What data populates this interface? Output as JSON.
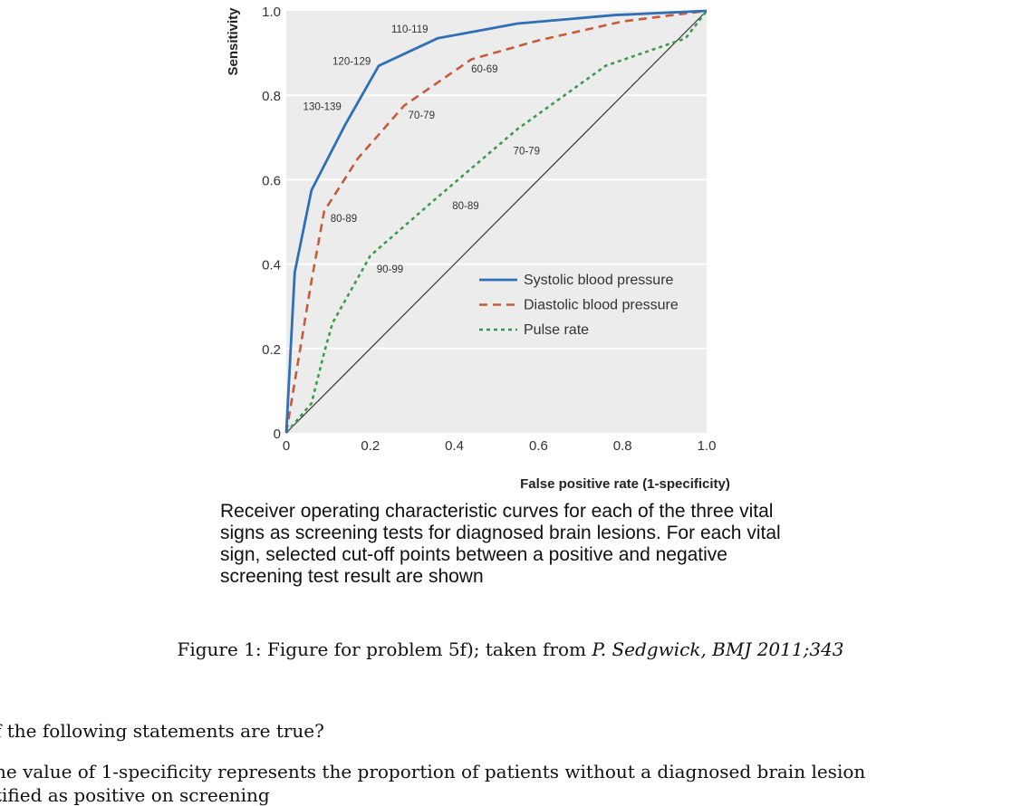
{
  "chart_data": {
    "type": "line",
    "xlabel": "False positive rate (1-specificity)",
    "ylabel": "Sensitivity",
    "xlim": [
      0,
      1
    ],
    "ylim": [
      0,
      1
    ],
    "x_ticks": [
      "0",
      "0.2",
      "0.4",
      "0.6",
      "0.8",
      "1.0"
    ],
    "y_ticks": [
      "0",
      "0.2",
      "0.4",
      "0.6",
      "0.8",
      "1.0"
    ],
    "grid": "horizontal",
    "legend_position": "lower-right",
    "series": [
      {
        "name": "Systolic blood pressure",
        "color": "#2f6fb5",
        "style": "solid",
        "points": [
          [
            0,
            0
          ],
          [
            0.02,
            0.38
          ],
          [
            0.06,
            0.575
          ],
          [
            0.14,
            0.73
          ],
          [
            0.22,
            0.87
          ],
          [
            0.36,
            0.935
          ],
          [
            0.55,
            0.97
          ],
          [
            0.78,
            0.99
          ],
          [
            1,
            1
          ]
        ]
      },
      {
        "name": "Diastolic blood pressure",
        "color": "#c85a3c",
        "style": "dashed",
        "points": [
          [
            0,
            0
          ],
          [
            0.03,
            0.18
          ],
          [
            0.06,
            0.36
          ],
          [
            0.09,
            0.525
          ],
          [
            0.17,
            0.65
          ],
          [
            0.28,
            0.775
          ],
          [
            0.44,
            0.885
          ],
          [
            0.6,
            0.93
          ],
          [
            0.8,
            0.975
          ],
          [
            1,
            1
          ]
        ]
      },
      {
        "name": "Pulse rate",
        "color": "#3c9a50",
        "style": "dotted",
        "points": [
          [
            0,
            0
          ],
          [
            0.06,
            0.07
          ],
          [
            0.09,
            0.19
          ],
          [
            0.11,
            0.26
          ],
          [
            0.2,
            0.42
          ],
          [
            0.35,
            0.55
          ],
          [
            0.55,
            0.72
          ],
          [
            0.76,
            0.87
          ],
          [
            0.95,
            0.935
          ],
          [
            1,
            1
          ]
        ]
      },
      {
        "name": "",
        "color": "#333333",
        "style": "thin",
        "points": [
          [
            0,
            0
          ],
          [
            1,
            1
          ]
        ]
      }
    ],
    "annotations": [
      {
        "text": "110-119",
        "x": 0.25,
        "y": 0.948
      },
      {
        "text": "120-129",
        "x": 0.11,
        "y": 0.872
      },
      {
        "text": "130-139",
        "x": 0.04,
        "y": 0.765
      },
      {
        "text": "60-69",
        "x": 0.44,
        "y": 0.854
      },
      {
        "text": "70-79",
        "x": 0.29,
        "y": 0.745
      },
      {
        "text": "80-89",
        "x": 0.105,
        "y": 0.5
      },
      {
        "text": "70-79",
        "x": 0.54,
        "y": 0.66
      },
      {
        "text": "80-89",
        "x": 0.395,
        "y": 0.53
      },
      {
        "text": "90-99",
        "x": 0.215,
        "y": 0.38
      }
    ]
  },
  "caption": "Receiver operating characteristic curves for each of the three vital signs as screening tests for diagnosed brain lesions. For each vital sign, selected cut-off points between a positive and negative screening test result are shown",
  "figure_caption": {
    "prefix": "Figure 1: Figure for problem 5f); taken from ",
    "citation": "P. Sedgwick, BMJ 2011;343"
  },
  "question": "f the following statements are true?",
  "statement_line1": "he value of 1-specificity represents the proportion of patients without a diagnosed brain lesion",
  "statement_line2": "tified as positive on screening"
}
